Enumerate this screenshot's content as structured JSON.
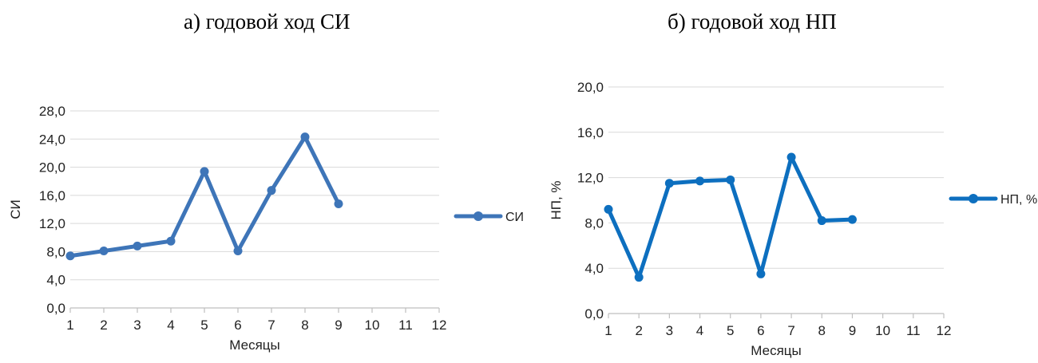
{
  "captions": {
    "left": "а) годовой ход СИ",
    "right": "б) годовой ход НП"
  },
  "chart_data": [
    {
      "type": "line",
      "title": "а) годовой ход СИ",
      "xlabel": "Месяцы",
      "ylabel": "СИ",
      "x": [
        1,
        2,
        3,
        4,
        5,
        6,
        7,
        8,
        9
      ],
      "x_ticks": [
        "1",
        "2",
        "3",
        "4",
        "5",
        "6",
        "7",
        "8",
        "9",
        "10",
        "11",
        "12"
      ],
      "y_ticks": [
        "0,0",
        "4,0",
        "8,0",
        "12,0",
        "16,0",
        "20,0",
        "24,0",
        "28,0"
      ],
      "xlim": [
        1,
        12
      ],
      "ylim": [
        0,
        28
      ],
      "grid": true,
      "legend_position": "right",
      "color": "#3e75b8",
      "series": [
        {
          "name": "СИ",
          "values": [
            7.4,
            8.1,
            8.8,
            9.5,
            19.4,
            8.1,
            16.7,
            24.3,
            14.8
          ]
        }
      ]
    },
    {
      "type": "line",
      "title": "б) годовой ход НП",
      "xlabel": "Месяцы",
      "ylabel": "НП, %",
      "x": [
        1,
        2,
        3,
        4,
        5,
        6,
        7,
        8,
        9
      ],
      "x_ticks": [
        "1",
        "2",
        "3",
        "4",
        "5",
        "6",
        "7",
        "8",
        "9",
        "10",
        "11",
        "12"
      ],
      "y_ticks": [
        "0,0",
        "4,0",
        "8,0",
        "12,0",
        "16,0",
        "20,0"
      ],
      "xlim": [
        1,
        12
      ],
      "ylim": [
        0,
        20
      ],
      "grid": true,
      "legend_position": "right",
      "color": "#0d6fbf",
      "series": [
        {
          "name": "НП, %",
          "values": [
            9.2,
            3.2,
            11.5,
            11.7,
            11.8,
            3.5,
            13.8,
            8.2,
            8.3
          ]
        }
      ]
    }
  ]
}
